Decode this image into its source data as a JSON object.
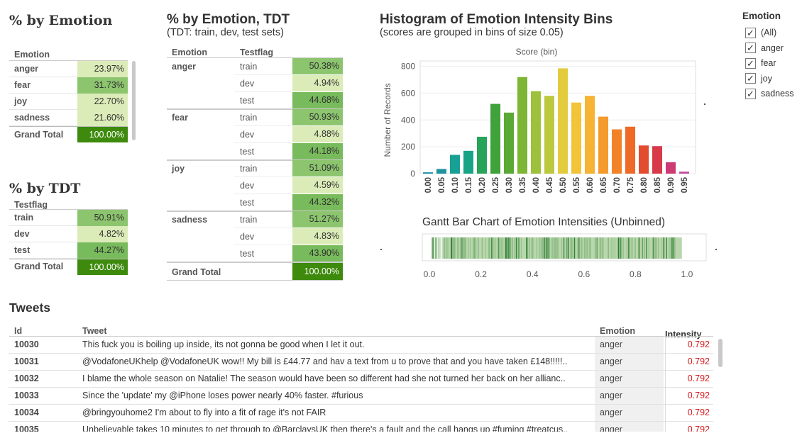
{
  "pct_emotion": {
    "title": "% by Emotion",
    "header": "Emotion",
    "rows": [
      {
        "label": "anger",
        "value": "23.97%"
      },
      {
        "label": "fear",
        "value": "31.73%"
      },
      {
        "label": "joy",
        "value": "22.70%"
      },
      {
        "label": "sadness",
        "value": "21.60%"
      }
    ],
    "total": {
      "label": "Grand Total",
      "value": "100.00%"
    }
  },
  "pct_tdt": {
    "title": "% by TDT",
    "header": "Testflag",
    "rows": [
      {
        "label": "train",
        "value": "50.91%"
      },
      {
        "label": "dev",
        "value": "4.82%"
      },
      {
        "label": "test",
        "value": "44.27%"
      }
    ],
    "total": {
      "label": "Grand Total",
      "value": "100.00%"
    }
  },
  "pct_emotion_tdt": {
    "title": "% by Emotion, TDT",
    "subtitle": "(TDT: train, dev, test sets)",
    "header_emotion": "Emotion",
    "header_testflag": "Testflag",
    "groups": [
      {
        "emotion": "anger",
        "rows": [
          {
            "flag": "train",
            "value": "50.38%"
          },
          {
            "flag": "dev",
            "value": "4.94%"
          },
          {
            "flag": "test",
            "value": "44.68%"
          }
        ]
      },
      {
        "emotion": "fear",
        "rows": [
          {
            "flag": "train",
            "value": "50.93%"
          },
          {
            "flag": "dev",
            "value": "4.88%"
          },
          {
            "flag": "test",
            "value": "44.18%"
          }
        ]
      },
      {
        "emotion": "joy",
        "rows": [
          {
            "flag": "train",
            "value": "51.09%"
          },
          {
            "flag": "dev",
            "value": "4.59%"
          },
          {
            "flag": "test",
            "value": "44.32%"
          }
        ]
      },
      {
        "emotion": "sadness",
        "rows": [
          {
            "flag": "train",
            "value": "51.27%"
          },
          {
            "flag": "dev",
            "value": "4.83%"
          },
          {
            "flag": "test",
            "value": "43.90%"
          }
        ]
      }
    ],
    "total": {
      "label": "Grand Total",
      "value": "100.00%"
    }
  },
  "histogram": {
    "title": "Histogram of Emotion Intensity Bins",
    "subtitle": "(scores are grouped in bins of size 0.05)"
  },
  "gantt": {
    "title": "Gantt Bar Chart of Emotion Intensities (Unbinned)"
  },
  "chart_data": [
    {
      "type": "bar",
      "xlabel": "Score (bin)",
      "ylabel": "Number of Records",
      "ylim": [
        0,
        840
      ],
      "yticks": [
        "800",
        "600",
        "400",
        "200",
        "0"
      ],
      "ytick_values": [
        800,
        600,
        400,
        200,
        0
      ],
      "categories": [
        "0.00",
        "0.05",
        "0.10",
        "0.15",
        "0.20",
        "0.25",
        "0.30",
        "0.35",
        "0.40",
        "0.45",
        "0.50",
        "0.55",
        "0.60",
        "0.65",
        "0.70",
        "0.75",
        "0.80",
        "0.85",
        "0.90",
        "0.95"
      ],
      "values": [
        10,
        35,
        140,
        170,
        275,
        520,
        455,
        720,
        615,
        580,
        785,
        530,
        580,
        425,
        330,
        350,
        210,
        205,
        85,
        15
      ],
      "colors": [
        "#1f8fa8",
        "#1f94a0",
        "#19a095",
        "#17a385",
        "#27a35a",
        "#3fa23a",
        "#5aa935",
        "#7db535",
        "#9dc13a",
        "#bcc83e",
        "#e2cc3e",
        "#f1c43a",
        "#f6b334",
        "#f59a2d",
        "#f28228",
        "#ee6a26",
        "#e24c2f",
        "#d93a4a",
        "#cc3b73",
        "#c44d9e"
      ],
      "grid": true
    },
    {
      "type": "gantt",
      "xticks": [
        "0.0",
        "0.2",
        "0.4",
        "0.6",
        "0.8",
        "1.0"
      ],
      "xtick_values": [
        0,
        0.2,
        0.4,
        0.6,
        0.8,
        1.0
      ],
      "xlim": [
        0,
        1.0
      ]
    }
  ],
  "filter": {
    "title": "Emotion",
    "items": [
      {
        "label": "(All)",
        "checked": true
      },
      {
        "label": "anger",
        "checked": true
      },
      {
        "label": "fear",
        "checked": true
      },
      {
        "label": "joy",
        "checked": true
      },
      {
        "label": "sadness",
        "checked": true
      }
    ]
  },
  "tweets": {
    "title": "Tweets",
    "headers": {
      "id": "Id",
      "tweet": "Tweet",
      "emotion": "Emotion",
      "intensity": "Intensity"
    },
    "rows": [
      {
        "id": "10030",
        "tweet": "This fuck you is boiling up inside, its not gonna be good when I let it out.",
        "emotion": "anger",
        "intensity": "0.792"
      },
      {
        "id": "10031",
        "tweet": "@VodafoneUKhelp @VodafoneUK wow!! My bill is £44.77 and hav a text from u to prove that and you have taken £148!!!!!..",
        "emotion": "anger",
        "intensity": "0.792"
      },
      {
        "id": "10032",
        "tweet": "I blame the whole season on Natalie! The season would have been so different had she not turned her back on her allianc..",
        "emotion": "anger",
        "intensity": "0.792"
      },
      {
        "id": "10033",
        "tweet": "Since the 'update' my @iPhone loses power nearly 40% faster.  #furious",
        "emotion": "anger",
        "intensity": "0.792"
      },
      {
        "id": "10034",
        "tweet": "@bringyouhome2 I'm about to fly into a fit of rage it's not FAIR",
        "emotion": "anger",
        "intensity": "0.792"
      },
      {
        "id": "10035",
        "tweet": "Unbelievable takes 10 minutes to get through to @BarclaysUK then there's a fault and the call hangs up #fuming #treatcus..",
        "emotion": "anger",
        "intensity": "0.792"
      }
    ]
  },
  "colors": {
    "cell_light": "#dcecb9",
    "cell_mid": "#8cc56e",
    "cell_strong": "#78bb5c",
    "cell_total": "#3d8a0d",
    "intensity_text": "#d7191c"
  }
}
